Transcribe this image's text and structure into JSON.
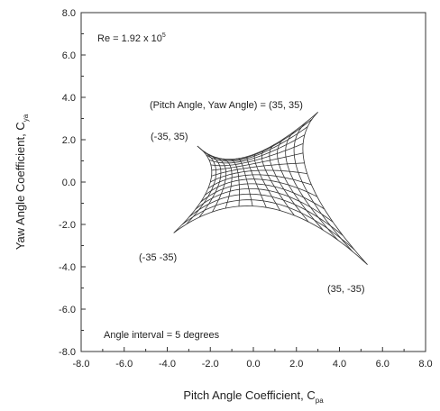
{
  "chart_data": {
    "type": "line",
    "title": "",
    "xlabel": "Pitch Angle Coefficient, C",
    "xlabel_sub": "pa",
    "ylabel": "Yaw Angle Coefficient, C",
    "ylabel_sub": "ya",
    "xlim": [
      -8.0,
      8.0
    ],
    "ylim": [
      -8.0,
      8.0
    ],
    "x_ticks": [
      "-8.0",
      "-6.0",
      "-4.0",
      "-2.0",
      "0.0",
      "2.0",
      "4.0",
      "6.0",
      "8.0"
    ],
    "y_ticks": [
      "-8.0",
      "-6.0",
      "-4.0",
      "-2.0",
      "0.0",
      "2.0",
      "4.0",
      "6.0",
      "8.0"
    ],
    "grid": false,
    "angle_values_deg": [
      -35,
      -30,
      -25,
      -20,
      -15,
      -10,
      -5,
      0,
      5,
      10,
      15,
      20,
      25,
      30,
      35
    ],
    "corners": [
      {
        "pitch": 35,
        "yaw": 35,
        "x": 3.0,
        "y": 3.3
      },
      {
        "pitch": -35,
        "yaw": 35,
        "x": -2.6,
        "y": 1.7
      },
      {
        "pitch": -35,
        "yaw": -35,
        "x": -3.7,
        "y": -2.4
      },
      {
        "pitch": 35,
        "yaw": -35,
        "x": 5.3,
        "y": -3.9
      }
    ],
    "edge_midpoints": {
      "top": {
        "x": -0.3,
        "y": 1.2
      },
      "bottom": {
        "x": 0.6,
        "y": -1.2
      },
      "left": {
        "x": -2.0,
        "y": 0.0
      },
      "right": {
        "x": 2.5,
        "y": 0.4
      }
    },
    "annotations": {
      "reynolds": "Re = 1.92 x 10",
      "reynolds_exp": "5",
      "interval": "Angle interval = 5 degrees",
      "label_pp": "(Pitch Angle, Yaw Angle) = (35, 35)",
      "label_np": "(-35, 35)",
      "label_nn": "(-35  -35)",
      "label_pn": "(35, -35)"
    },
    "colors": {
      "line": "#333333",
      "text": "#222222",
      "background": "#ffffff"
    }
  }
}
